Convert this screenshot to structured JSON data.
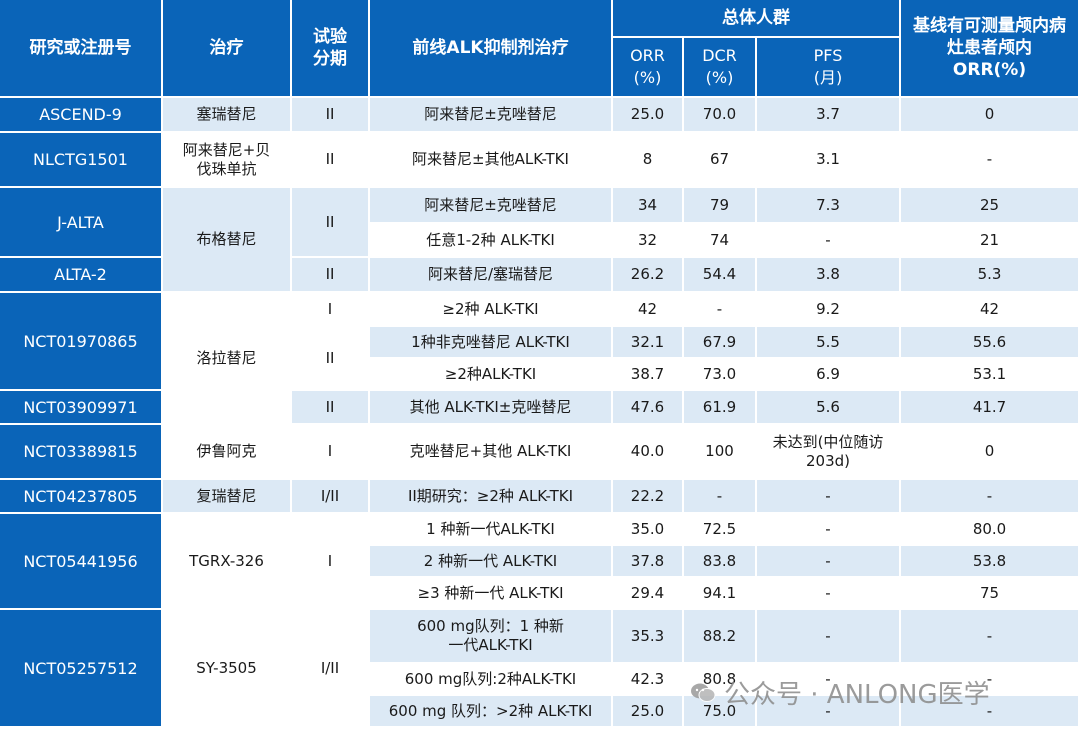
{
  "header": {
    "col_id": "研究或注册号",
    "col_treatment": "治疗",
    "col_phase": "试验分期",
    "col_prior": "前线ALK抑制剂治疗",
    "col_overall": "总体人群",
    "col_orr": "ORR (%)",
    "col_dcr": "DCR (%)",
    "col_pfs": "PFS (月)",
    "col_brain": "基线有可测量颅内病灶患者颅内ORR(%)"
  },
  "rows": [
    {
      "id": "ASCEND-9",
      "tx": "塞瑞替尼",
      "phase": "II",
      "prior": "阿来替尼±克唑替尼",
      "orr": "25.0",
      "dcr": "70.0",
      "pfs": "3.7",
      "brain": "0"
    },
    {
      "id": "NLCTG1501",
      "tx": "阿来替尼+贝伐珠单抗",
      "phase": "II",
      "prior": "阿来替尼±其他ALK-TKI",
      "orr": "8",
      "dcr": "67",
      "pfs": "3.1",
      "brain": "-"
    },
    {
      "id": "J-ALTA",
      "tx": "布格替尼",
      "phase": "II",
      "prior": "阿来替尼±克唑替尼",
      "orr": "34",
      "dcr": "79",
      "pfs": "7.3",
      "brain": "25"
    },
    {
      "prior": "任意1-2种 ALK-TKI",
      "orr": "32",
      "dcr": "74",
      "pfs": "-",
      "brain": "21"
    },
    {
      "id": "ALTA-2",
      "phase": "II",
      "prior": "阿来替尼/塞瑞替尼",
      "orr": "26.2",
      "dcr": "54.4",
      "pfs": "3.8",
      "brain": "5.3"
    },
    {
      "id": "NCT01970865",
      "tx": "洛拉替尼",
      "phase": "I",
      "prior": "≥2种 ALK-TKI",
      "orr": "42",
      "dcr": "-",
      "pfs": "9.2",
      "brain": "42"
    },
    {
      "phase": "II",
      "prior": "1种非克唑替尼 ALK-TKI",
      "orr": "32.1",
      "dcr": "67.9",
      "pfs": "5.5",
      "brain": "55.6"
    },
    {
      "prior": "≥2种ALK-TKI",
      "orr": "38.7",
      "dcr": "73.0",
      "pfs": "6.9",
      "brain": "53.1"
    },
    {
      "id": "NCT03909971",
      "phase": "II",
      "prior": "其他 ALK-TKI±克唑替尼",
      "orr": "47.6",
      "dcr": "61.9",
      "pfs": "5.6",
      "brain": "41.7"
    },
    {
      "id": "NCT03389815",
      "tx": "伊鲁阿克",
      "phase": "I",
      "prior": "克唑替尼+其他 ALK-TKI",
      "orr": "40.0",
      "dcr": "100",
      "pfs": "未达到(中位随访203d)",
      "brain": "0"
    },
    {
      "id": "NCT04237805",
      "tx": "复瑞替尼",
      "phase": "I/II",
      "prior": "II期研究：≥2种 ALK-TKI",
      "orr": "22.2",
      "dcr": "-",
      "pfs": "-",
      "brain": "-"
    },
    {
      "id": "NCT05441956",
      "tx": "TGRX-326",
      "phase": "I",
      "prior": "1 种新一代ALK-TKI",
      "orr": "35.0",
      "dcr": "72.5",
      "pfs": "-",
      "brain": "80.0"
    },
    {
      "prior": "2 种新一代 ALK-TKI",
      "orr": "37.8",
      "dcr": "83.8",
      "pfs": "-",
      "brain": "53.8"
    },
    {
      "prior": "≥3 种新一代 ALK-TKI",
      "orr": "29.4",
      "dcr": "94.1",
      "pfs": "-",
      "brain": "75"
    },
    {
      "id": "NCT05257512",
      "tx": "SY-3505",
      "phase": "I/II",
      "prior": "600 mg队列：1 种新一代ALK-TKI",
      "orr": "35.3",
      "dcr": "88.2",
      "pfs": "-",
      "brain": "-"
    },
    {
      "prior": "600 mg队列:2种ALK-TKI",
      "orr": "42.3",
      "dcr": "80.8",
      "pfs": "-",
      "brain": "-"
    },
    {
      "prior": "600 mg 队列：>2种 ALK-TKI",
      "orr": "25.0",
      "dcr": "75.0",
      "pfs": "-",
      "brain": "-"
    }
  ],
  "watermark": {
    "text": "公众号 · ANLONG医学",
    "icon": "wechat-icon"
  }
}
